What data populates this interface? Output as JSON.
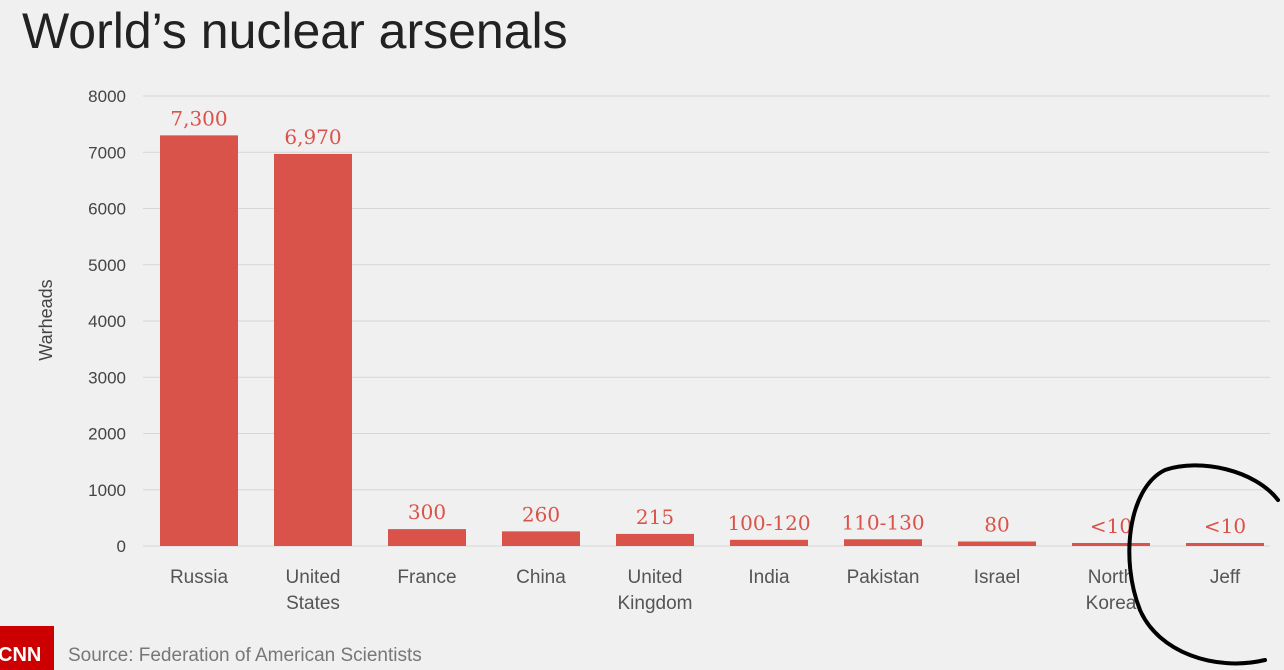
{
  "chart_data": {
    "type": "bar",
    "title": "World’s nuclear arsenals",
    "ylabel": "Warheads",
    "ylim": [
      0,
      8000
    ],
    "yticks": [
      0,
      1000,
      2000,
      3000,
      4000,
      5000,
      6000,
      7000,
      8000
    ],
    "grid": true,
    "categories": [
      [
        "Russia"
      ],
      [
        "United",
        "States"
      ],
      [
        "France"
      ],
      [
        "China"
      ],
      [
        "United",
        "Kingdom"
      ],
      [
        "India"
      ],
      [
        "Pakistan"
      ],
      [
        "Israel"
      ],
      [
        "North",
        "Korea"
      ],
      [
        "Jeff"
      ]
    ],
    "values": [
      7300,
      6970,
      300,
      260,
      215,
      110,
      120,
      80,
      10,
      10
    ],
    "data_labels": [
      "7,300",
      "6,970",
      "300",
      "260",
      "215",
      "100-120",
      "110-130",
      "80",
      "<10",
      "<10"
    ],
    "bar_color": "#d9534a",
    "annotations": [
      {
        "type": "hand-drawn-circle",
        "around": "Jeff",
        "color": "#000000"
      }
    ]
  },
  "footer": {
    "logo": "CNN",
    "logo_color": "#cc0000",
    "source": "Source: Federation of American Scientists"
  }
}
